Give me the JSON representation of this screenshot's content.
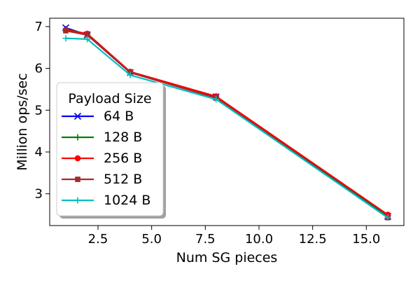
{
  "chart_data": {
    "type": "line",
    "title": "",
    "xlabel": "Num SG pieces",
    "ylabel": "Million ops/sec",
    "xlim": [
      0.25,
      16.75
    ],
    "ylim": [
      2.24,
      7.2
    ],
    "xticks": [
      2.5,
      5.0,
      7.5,
      10.0,
      12.5,
      15.0
    ],
    "xtick_labels": [
      "2.5",
      "5.0",
      "7.5",
      "10.0",
      "12.5",
      "15.0"
    ],
    "yticks": [
      3,
      4,
      5,
      6,
      7
    ],
    "ytick_labels": [
      "3",
      "4",
      "5",
      "6",
      "7"
    ],
    "grid": false,
    "legend": {
      "title": "Payload Size",
      "placement": "lower-left"
    },
    "x": [
      1,
      2,
      4,
      8,
      16
    ],
    "series": [
      {
        "name": "64 B",
        "color": "#0000ff",
        "marker": "x",
        "values": [
          6.97,
          6.8,
          5.9,
          5.32,
          2.46
        ]
      },
      {
        "name": "128 B",
        "color": "#008000",
        "marker": "plus",
        "values": [
          6.94,
          6.82,
          5.91,
          5.33,
          2.48
        ]
      },
      {
        "name": "256 B",
        "color": "#ff0000",
        "marker": "circle",
        "values": [
          6.92,
          6.83,
          5.92,
          5.33,
          2.5
        ]
      },
      {
        "name": "512 B",
        "color": "#a52a2a",
        "marker": "square",
        "values": [
          6.9,
          6.8,
          5.9,
          5.29,
          2.43
        ]
      },
      {
        "name": "1024 B",
        "color": "#00bfbf",
        "marker": "plus",
        "values": [
          6.72,
          6.7,
          5.84,
          5.26,
          2.43
        ]
      }
    ]
  }
}
